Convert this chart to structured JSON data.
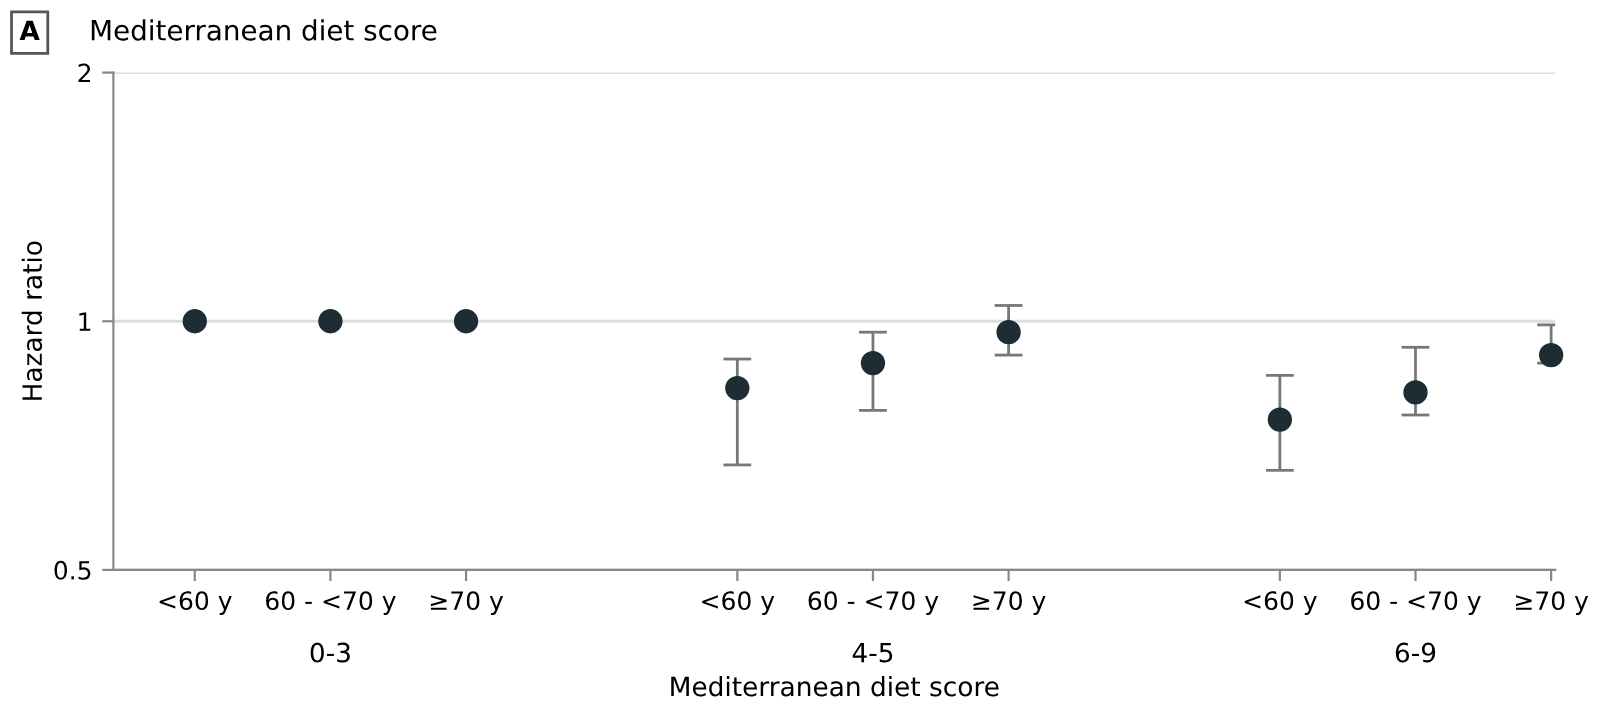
{
  "chart_data": {
    "type": "scatter",
    "title": "Mediterranean diet score",
    "xlabel": "Mediterranean diet score",
    "ylabel": "Hazard ratio",
    "annotations": [
      "A",
      "0-3",
      "4-5",
      "6-9"
    ],
    "categories": [
      "<60 y",
      "60 - <70 y",
      "≥70 y",
      null,
      "<60 y",
      "60 - <70 y",
      "≥70 y",
      null,
      "<60 y",
      "60 - <70 y",
      "≥70 y"
    ],
    "series": [
      {
        "color": "#1e2d33",
        "values": [
          1,
          1,
          1,
          null,
          0.83,
          0.89,
          0.97,
          null,
          0.76,
          0.82,
          0.91
        ],
        "errors": [
          null,
          null,
          null,
          null,
          [
            0.67,
            0.9
          ],
          [
            0.78,
            0.97
          ],
          [
            0.91,
            1.045
          ],
          null,
          [
            0.66,
            0.86
          ],
          [
            0.77,
            0.93
          ],
          [
            0.89,
            0.99
          ]
        ]
      }
    ],
    "log": "y",
    "ylim": [
      0.5,
      2
    ],
    "yticks": [
      0.5,
      1,
      2
    ],
    "grid": "y",
    "marker": "circle",
    "legend": false
  }
}
